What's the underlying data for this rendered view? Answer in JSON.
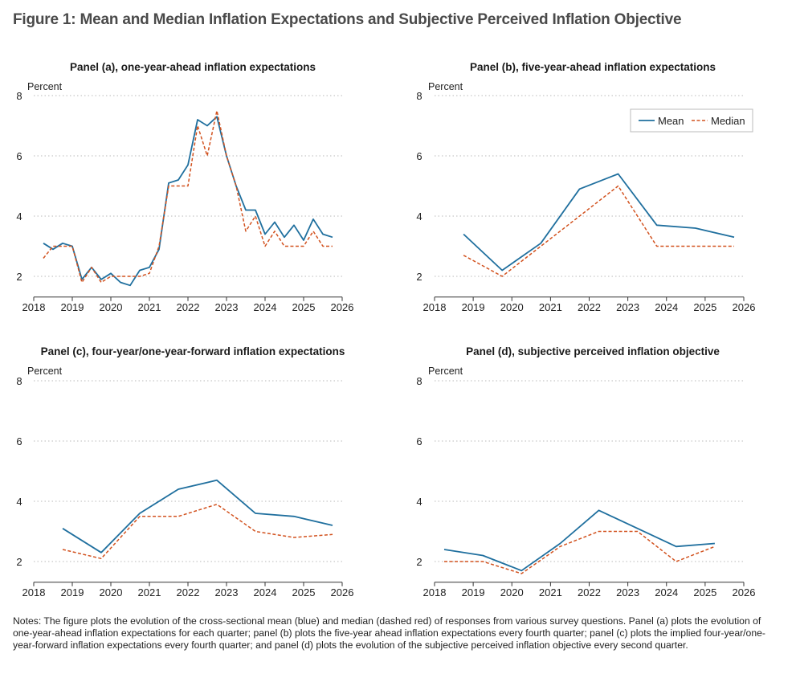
{
  "figure_title": "Figure 1: Mean and Median Inflation Expectations and Subjective Perceived Inflation Objective",
  "notes": "Notes: The figure plots the evolution of the cross-sectional mean (blue) and median (dashed red) of responses from various survey questions. Panel (a) plots the evolution of one-year-ahead inflation expectations for each quarter; panel (b) plots the five-year ahead inflation expectations every fourth quarter; panel (c) plots the implied four-year/one-year-forward inflation expectations every fourth quarter; and panel (d) plots the evolution of the subjective perceived inflation objective every second quarter.",
  "colors": {
    "mean": "#1f6f9e",
    "median": "#d2521f",
    "grid": "#b9b9b9",
    "text": "#222222"
  },
  "legend": {
    "mean": "Mean",
    "median": "Median",
    "placement": "top-right of panel (b)"
  },
  "chart_data": [
    {
      "type": "line",
      "title": "Panel (a), one-year-ahead inflation expectations",
      "ylabel": "Percent",
      "xlabel": "",
      "xlim": [
        2018,
        2026
      ],
      "ylim": [
        1.5,
        8
      ],
      "yticks": [
        2,
        4,
        6,
        8
      ],
      "xticks": [
        2018,
        2019,
        2020,
        2021,
        2022,
        2023,
        2024,
        2025,
        2026
      ],
      "grid": "horizontal dotted",
      "series": [
        {
          "name": "Mean",
          "style": "solid",
          "x": [
            2018.25,
            2018.5,
            2018.75,
            2019.0,
            2019.25,
            2019.5,
            2019.75,
            2020.0,
            2020.25,
            2020.5,
            2020.75,
            2021.0,
            2021.25,
            2021.5,
            2021.75,
            2022.0,
            2022.25,
            2022.5,
            2022.75,
            2023.0,
            2023.25,
            2023.5,
            2023.75,
            2024.0,
            2024.25,
            2024.5,
            2024.75,
            2025.0,
            2025.25,
            2025.5,
            2025.75
          ],
          "y": [
            3.1,
            2.9,
            3.1,
            3.0,
            1.9,
            2.3,
            1.9,
            2.1,
            1.8,
            1.7,
            2.2,
            2.3,
            2.9,
            5.1,
            5.2,
            5.7,
            7.2,
            7.0,
            7.3,
            6.0,
            5.0,
            4.2,
            4.2,
            3.4,
            3.8,
            3.3,
            3.7,
            3.2,
            3.9,
            3.4,
            3.3
          ]
        },
        {
          "name": "Median",
          "style": "dashed",
          "x": [
            2018.25,
            2018.5,
            2018.75,
            2019.0,
            2019.25,
            2019.5,
            2019.75,
            2020.0,
            2020.25,
            2020.5,
            2020.75,
            2021.0,
            2021.25,
            2021.5,
            2021.75,
            2022.0,
            2022.25,
            2022.5,
            2022.75,
            2023.0,
            2023.25,
            2023.5,
            2023.75,
            2024.0,
            2024.25,
            2024.5,
            2024.75,
            2025.0,
            2025.25,
            2025.5,
            2025.75
          ],
          "y": [
            2.6,
            3.0,
            3.0,
            3.0,
            1.8,
            2.3,
            1.8,
            2.0,
            2.0,
            2.0,
            2.0,
            2.1,
            3.0,
            5.0,
            5.0,
            5.0,
            7.0,
            6.0,
            7.5,
            6.0,
            5.0,
            3.5,
            4.0,
            3.0,
            3.5,
            3.0,
            3.0,
            3.0,
            3.5,
            3.0,
            3.0
          ]
        }
      ]
    },
    {
      "type": "line",
      "title": "Panel (b), five-year-ahead inflation expectations",
      "ylabel": "Percent",
      "xlabel": "",
      "xlim": [
        2018,
        2026
      ],
      "ylim": [
        1.5,
        8
      ],
      "yticks": [
        2,
        4,
        6,
        8
      ],
      "xticks": [
        2018,
        2019,
        2020,
        2021,
        2022,
        2023,
        2024,
        2025,
        2026
      ],
      "grid": "horizontal dotted",
      "legend": "top-right",
      "series": [
        {
          "name": "Mean",
          "style": "solid",
          "x": [
            2018.75,
            2019.75,
            2020.75,
            2021.75,
            2022.75,
            2023.75,
            2024.75,
            2025.75
          ],
          "y": [
            3.4,
            2.2,
            3.1,
            4.9,
            5.4,
            3.7,
            3.6,
            3.3
          ]
        },
        {
          "name": "Median",
          "style": "dashed",
          "x": [
            2018.75,
            2019.75,
            2020.75,
            2021.75,
            2022.75,
            2023.75,
            2024.75,
            2025.75
          ],
          "y": [
            2.7,
            2.0,
            3.0,
            4.0,
            5.0,
            3.0,
            3.0,
            3.0
          ]
        }
      ]
    },
    {
      "type": "line",
      "title": "Panel (c), four-year/one-year-forward inflation expectations",
      "ylabel": "Percent",
      "xlabel": "",
      "xlim": [
        2018,
        2026
      ],
      "ylim": [
        1.5,
        8
      ],
      "yticks": [
        2,
        4,
        6,
        8
      ],
      "xticks": [
        2018,
        2019,
        2020,
        2021,
        2022,
        2023,
        2024,
        2025,
        2026
      ],
      "grid": "horizontal dotted",
      "series": [
        {
          "name": "Mean",
          "style": "solid",
          "x": [
            2018.75,
            2019.75,
            2020.75,
            2021.75,
            2022.75,
            2023.75,
            2024.75,
            2025.75
          ],
          "y": [
            3.1,
            2.3,
            3.6,
            4.4,
            4.7,
            3.6,
            3.5,
            3.2
          ]
        },
        {
          "name": "Median",
          "style": "dashed",
          "x": [
            2018.75,
            2019.75,
            2020.75,
            2021.75,
            2022.75,
            2023.75,
            2024.75,
            2025.75
          ],
          "y": [
            2.4,
            2.1,
            3.5,
            3.5,
            3.9,
            3.0,
            2.8,
            2.9
          ]
        }
      ]
    },
    {
      "type": "line",
      "title": "Panel (d), subjective perceived inflation objective",
      "ylabel": "Percent",
      "xlabel": "",
      "xlim": [
        2018,
        2026
      ],
      "ylim": [
        1.5,
        8
      ],
      "yticks": [
        2,
        4,
        6,
        8
      ],
      "xticks": [
        2018,
        2019,
        2020,
        2021,
        2022,
        2023,
        2024,
        2025,
        2026
      ],
      "grid": "horizontal dotted",
      "series": [
        {
          "name": "Mean",
          "style": "solid",
          "x": [
            2018.25,
            2019.25,
            2020.25,
            2021.25,
            2022.25,
            2023.25,
            2024.25,
            2025.25
          ],
          "y": [
            2.4,
            2.2,
            1.7,
            2.6,
            3.7,
            3.1,
            2.5,
            2.6
          ]
        },
        {
          "name": "Median",
          "style": "dashed",
          "x": [
            2018.25,
            2019.25,
            2020.25,
            2021.25,
            2022.25,
            2023.25,
            2024.25,
            2025.25
          ],
          "y": [
            2.0,
            2.0,
            1.6,
            2.5,
            3.0,
            3.0,
            2.0,
            2.5
          ]
        }
      ]
    }
  ]
}
